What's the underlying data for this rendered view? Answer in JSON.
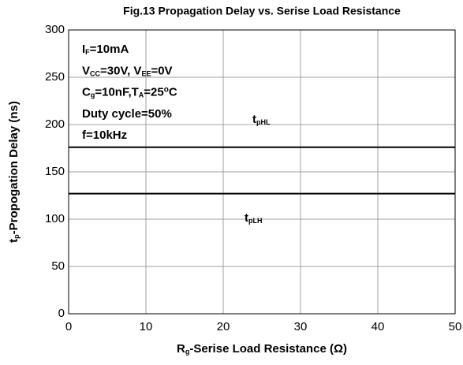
{
  "chart_data": {
    "type": "line",
    "title": "Fig.13 Propagation Delay vs. Serise Load Resistance",
    "x_label": [
      "R",
      {
        "sub": "g"
      },
      "-Serise Load Resistance (Ω)"
    ],
    "y_label": [
      "t",
      {
        "sub": "p"
      },
      "-Propogation Delay (ns)"
    ],
    "annotations": [
      [
        "I",
        {
          "sub": "F"
        },
        "=10mA"
      ],
      [
        "V",
        {
          "sub": "CC"
        },
        "=30V, V",
        {
          "sub": "EE"
        },
        "=0V"
      ],
      [
        "C",
        {
          "sub": "g"
        },
        "=10nF,T",
        {
          "sub": "A"
        },
        "=25",
        {
          "sup": "o"
        },
        "C"
      ],
      [
        "Duty cycle=50%"
      ],
      [
        "f=10kHz"
      ]
    ],
    "x": [
      0,
      50
    ],
    "series": [
      {
        "name": [
          "t",
          {
            "sub": "pHL"
          }
        ],
        "color": "#000000",
        "values": [
          176,
          176
        ]
      },
      {
        "name": [
          "t",
          {
            "sub": "pLH"
          }
        ],
        "color": "#000000",
        "values": [
          127,
          127
        ]
      }
    ],
    "xlim": [
      0,
      50
    ],
    "xticks": [
      0,
      10,
      20,
      30,
      40,
      50
    ],
    "ylim": [
      0,
      300
    ],
    "yticks": [
      0,
      50,
      100,
      150,
      200,
      250,
      300
    ],
    "grid": true
  }
}
